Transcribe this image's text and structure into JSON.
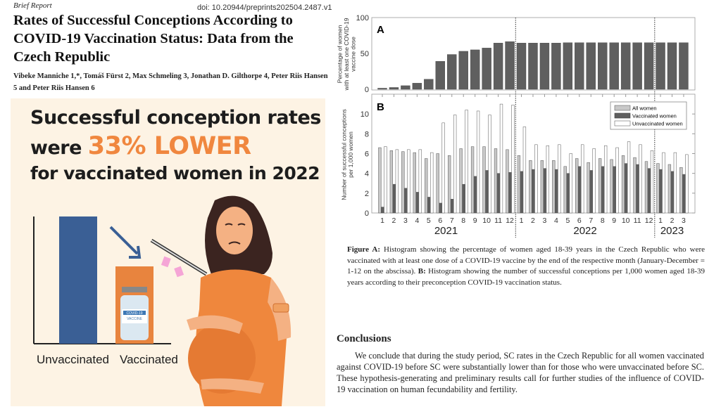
{
  "paper": {
    "label": "Brief Report",
    "doi": "doi: 10.20944/preprints202504.2487.v1",
    "title": "Rates of Successful Conceptions According to COVID-19 Vaccination Status: Data from the Czech Republic",
    "authors": "Vibeke Manniche 1,*, Tomáš Fürst 2, Max Schmeling 3, Jonathan D. Gilthorpe 4, Peter Riis Hansen 5 and Peter Riis Hansen 6"
  },
  "infographic": {
    "line1": "Successful conception rates",
    "line2_prefix": "were",
    "line2_highlight": "33% LOWER",
    "line3": "for vaccinated women in 2022",
    "bar_labels": [
      "Unvaccinated",
      "Vaccinated"
    ],
    "vial_text": [
      "COVID-19",
      "VACCINE"
    ],
    "colors": {
      "background": "#fdf3e4",
      "highlight": "#f0873f",
      "unvaccinated_bar": "#3a5f95",
      "vaccinated_bar": "#e8843e"
    }
  },
  "chart_data": [
    {
      "type": "bar",
      "panel_label": "A",
      "ylabel": "Percentage of women with at least one COVID-19 vaccine dose",
      "ylim": [
        0,
        100
      ],
      "yticks": [
        0,
        50,
        100
      ],
      "categories": [
        "1",
        "2",
        "3",
        "4",
        "5",
        "6",
        "7",
        "8",
        "9",
        "10",
        "11",
        "12",
        "1",
        "2",
        "3",
        "4",
        "5",
        "6",
        "7",
        "8",
        "9",
        "10",
        "11",
        "12",
        "1",
        "2",
        "3"
      ],
      "year_groups": [
        {
          "label": "2021",
          "months": 12
        },
        {
          "label": "2022",
          "months": 12
        },
        {
          "label": "2023",
          "months": 3
        }
      ],
      "values": [
        1.5,
        2.5,
        5,
        8.5,
        14,
        39,
        48.5,
        53,
        55,
        57.5,
        64.5,
        66.5,
        64.5,
        64.5,
        64.5,
        64.5,
        65,
        65,
        65,
        65,
        65,
        65,
        65,
        65,
        65,
        65,
        65
      ],
      "color": "#5f5f5f"
    },
    {
      "type": "bar",
      "panel_label": "B",
      "ylabel": "Number of successful conceptions per 1,000 women",
      "ylim": [
        0,
        12
      ],
      "yticks": [
        0,
        2,
        4,
        6,
        8,
        10
      ],
      "legend_position": "top-right",
      "series": [
        {
          "name": "All women",
          "color": "#c8c8c8",
          "values": [
            6.6,
            6.3,
            6.2,
            6.1,
            5.5,
            6.0,
            5.8,
            6.5,
            6.7,
            6.7,
            6.5,
            6.4,
            5.8,
            5.3,
            5.3,
            5.3,
            4.7,
            5.5,
            5.1,
            5.5,
            5.4,
            5.8,
            5.6,
            5.2,
            5.0,
            4.9,
            4.6
          ]
        },
        {
          "name": "Vaccinated women",
          "color": "#5f5f5f",
          "values": [
            0.6,
            2.9,
            2.5,
            2.1,
            1.6,
            1.0,
            1.4,
            2.9,
            3.7,
            4.3,
            4.0,
            4.1,
            4.2,
            4.4,
            4.5,
            4.4,
            4.0,
            4.7,
            4.3,
            4.7,
            4.7,
            5.0,
            4.9,
            4.5,
            4.4,
            4.2,
            3.9
          ]
        },
        {
          "name": "Unvaccinated women",
          "color": "#ffffff",
          "values": [
            6.7,
            6.4,
            6.4,
            6.4,
            6.1,
            9.1,
            9.9,
            10.4,
            10.3,
            9.9,
            11.0,
            10.9,
            8.7,
            6.9,
            6.8,
            6.9,
            6.0,
            6.9,
            6.5,
            6.8,
            6.6,
            7.2,
            6.9,
            6.3,
            6.1,
            6.1,
            5.9
          ]
        }
      ]
    }
  ],
  "caption": {
    "a_label": "Figure A:",
    "a_text": " Histogram showing the percentage of women aged 18-39 years in the Czech Republic who were vaccinated with at least one dose of a COVID-19 vaccine by the end of the respective month (January-December = 1-12 on the abscissa). ",
    "b_label": "B:",
    "b_text": " Histogram showing the number of successful conceptions per 1,000 women aged 18-39 years according to their preconception COVID-19 vaccination status."
  },
  "conclusions": {
    "heading": "Conclusions",
    "body": "We conclude that during the study period, SC rates in the Czech Republic for all women vaccinated against COVID-19 before SC were substantially lower than for those who were unvaccinated before SC. These hypothesis-generating and preliminary results call for further studies of the influence of COVID-19 vaccination on human fecundability and fertility."
  }
}
